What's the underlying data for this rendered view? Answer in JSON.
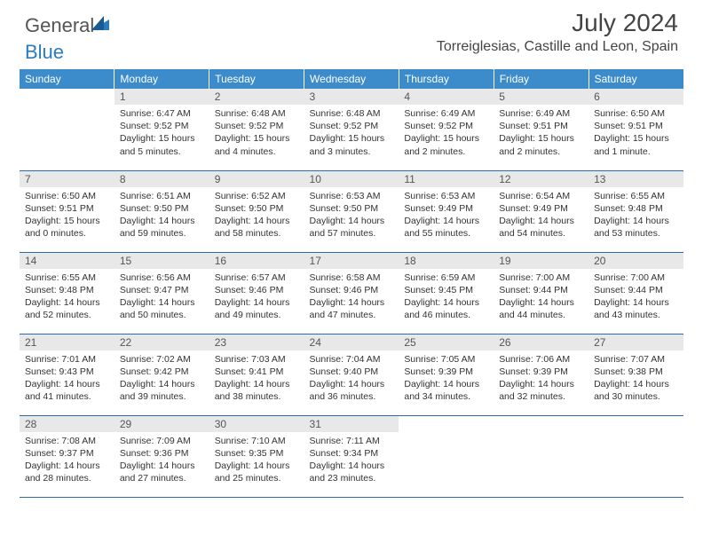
{
  "brand": {
    "part1": "General",
    "part2": "Blue"
  },
  "title": "July 2024",
  "location": "Torreiglesias, Castille and Leon, Spain",
  "colors": {
    "header_bg": "#3c8ccc",
    "header_text": "#ffffff",
    "daynum_bg": "#e8e8e8",
    "cell_border": "#2b6ba8",
    "body_text": "#333333",
    "brand_gray": "#555555",
    "brand_blue": "#2b7bbf"
  },
  "fonts": {
    "family": "Arial",
    "title_size_pt": 21,
    "location_size_pt": 12,
    "header_size_pt": 9,
    "body_size_pt": 8
  },
  "days_of_week": [
    "Sunday",
    "Monday",
    "Tuesday",
    "Wednesday",
    "Thursday",
    "Friday",
    "Saturday"
  ],
  "weeks": [
    [
      {
        "num": "",
        "l1": "",
        "l2": "",
        "l3": "",
        "l4": ""
      },
      {
        "num": "1",
        "l1": "Sunrise: 6:47 AM",
        "l2": "Sunset: 9:52 PM",
        "l3": "Daylight: 15 hours",
        "l4": "and 5 minutes."
      },
      {
        "num": "2",
        "l1": "Sunrise: 6:48 AM",
        "l2": "Sunset: 9:52 PM",
        "l3": "Daylight: 15 hours",
        "l4": "and 4 minutes."
      },
      {
        "num": "3",
        "l1": "Sunrise: 6:48 AM",
        "l2": "Sunset: 9:52 PM",
        "l3": "Daylight: 15 hours",
        "l4": "and 3 minutes."
      },
      {
        "num": "4",
        "l1": "Sunrise: 6:49 AM",
        "l2": "Sunset: 9:52 PM",
        "l3": "Daylight: 15 hours",
        "l4": "and 2 minutes."
      },
      {
        "num": "5",
        "l1": "Sunrise: 6:49 AM",
        "l2": "Sunset: 9:51 PM",
        "l3": "Daylight: 15 hours",
        "l4": "and 2 minutes."
      },
      {
        "num": "6",
        "l1": "Sunrise: 6:50 AM",
        "l2": "Sunset: 9:51 PM",
        "l3": "Daylight: 15 hours",
        "l4": "and 1 minute."
      }
    ],
    [
      {
        "num": "7",
        "l1": "Sunrise: 6:50 AM",
        "l2": "Sunset: 9:51 PM",
        "l3": "Daylight: 15 hours",
        "l4": "and 0 minutes."
      },
      {
        "num": "8",
        "l1": "Sunrise: 6:51 AM",
        "l2": "Sunset: 9:50 PM",
        "l3": "Daylight: 14 hours",
        "l4": "and 59 minutes."
      },
      {
        "num": "9",
        "l1": "Sunrise: 6:52 AM",
        "l2": "Sunset: 9:50 PM",
        "l3": "Daylight: 14 hours",
        "l4": "and 58 minutes."
      },
      {
        "num": "10",
        "l1": "Sunrise: 6:53 AM",
        "l2": "Sunset: 9:50 PM",
        "l3": "Daylight: 14 hours",
        "l4": "and 57 minutes."
      },
      {
        "num": "11",
        "l1": "Sunrise: 6:53 AM",
        "l2": "Sunset: 9:49 PM",
        "l3": "Daylight: 14 hours",
        "l4": "and 55 minutes."
      },
      {
        "num": "12",
        "l1": "Sunrise: 6:54 AM",
        "l2": "Sunset: 9:49 PM",
        "l3": "Daylight: 14 hours",
        "l4": "and 54 minutes."
      },
      {
        "num": "13",
        "l1": "Sunrise: 6:55 AM",
        "l2": "Sunset: 9:48 PM",
        "l3": "Daylight: 14 hours",
        "l4": "and 53 minutes."
      }
    ],
    [
      {
        "num": "14",
        "l1": "Sunrise: 6:55 AM",
        "l2": "Sunset: 9:48 PM",
        "l3": "Daylight: 14 hours",
        "l4": "and 52 minutes."
      },
      {
        "num": "15",
        "l1": "Sunrise: 6:56 AM",
        "l2": "Sunset: 9:47 PM",
        "l3": "Daylight: 14 hours",
        "l4": "and 50 minutes."
      },
      {
        "num": "16",
        "l1": "Sunrise: 6:57 AM",
        "l2": "Sunset: 9:46 PM",
        "l3": "Daylight: 14 hours",
        "l4": "and 49 minutes."
      },
      {
        "num": "17",
        "l1": "Sunrise: 6:58 AM",
        "l2": "Sunset: 9:46 PM",
        "l3": "Daylight: 14 hours",
        "l4": "and 47 minutes."
      },
      {
        "num": "18",
        "l1": "Sunrise: 6:59 AM",
        "l2": "Sunset: 9:45 PM",
        "l3": "Daylight: 14 hours",
        "l4": "and 46 minutes."
      },
      {
        "num": "19",
        "l1": "Sunrise: 7:00 AM",
        "l2": "Sunset: 9:44 PM",
        "l3": "Daylight: 14 hours",
        "l4": "and 44 minutes."
      },
      {
        "num": "20",
        "l1": "Sunrise: 7:00 AM",
        "l2": "Sunset: 9:44 PM",
        "l3": "Daylight: 14 hours",
        "l4": "and 43 minutes."
      }
    ],
    [
      {
        "num": "21",
        "l1": "Sunrise: 7:01 AM",
        "l2": "Sunset: 9:43 PM",
        "l3": "Daylight: 14 hours",
        "l4": "and 41 minutes."
      },
      {
        "num": "22",
        "l1": "Sunrise: 7:02 AM",
        "l2": "Sunset: 9:42 PM",
        "l3": "Daylight: 14 hours",
        "l4": "and 39 minutes."
      },
      {
        "num": "23",
        "l1": "Sunrise: 7:03 AM",
        "l2": "Sunset: 9:41 PM",
        "l3": "Daylight: 14 hours",
        "l4": "and 38 minutes."
      },
      {
        "num": "24",
        "l1": "Sunrise: 7:04 AM",
        "l2": "Sunset: 9:40 PM",
        "l3": "Daylight: 14 hours",
        "l4": "and 36 minutes."
      },
      {
        "num": "25",
        "l1": "Sunrise: 7:05 AM",
        "l2": "Sunset: 9:39 PM",
        "l3": "Daylight: 14 hours",
        "l4": "and 34 minutes."
      },
      {
        "num": "26",
        "l1": "Sunrise: 7:06 AM",
        "l2": "Sunset: 9:39 PM",
        "l3": "Daylight: 14 hours",
        "l4": "and 32 minutes."
      },
      {
        "num": "27",
        "l1": "Sunrise: 7:07 AM",
        "l2": "Sunset: 9:38 PM",
        "l3": "Daylight: 14 hours",
        "l4": "and 30 minutes."
      }
    ],
    [
      {
        "num": "28",
        "l1": "Sunrise: 7:08 AM",
        "l2": "Sunset: 9:37 PM",
        "l3": "Daylight: 14 hours",
        "l4": "and 28 minutes."
      },
      {
        "num": "29",
        "l1": "Sunrise: 7:09 AM",
        "l2": "Sunset: 9:36 PM",
        "l3": "Daylight: 14 hours",
        "l4": "and 27 minutes."
      },
      {
        "num": "30",
        "l1": "Sunrise: 7:10 AM",
        "l2": "Sunset: 9:35 PM",
        "l3": "Daylight: 14 hours",
        "l4": "and 25 minutes."
      },
      {
        "num": "31",
        "l1": "Sunrise: 7:11 AM",
        "l2": "Sunset: 9:34 PM",
        "l3": "Daylight: 14 hours",
        "l4": "and 23 minutes."
      },
      {
        "num": "",
        "l1": "",
        "l2": "",
        "l3": "",
        "l4": ""
      },
      {
        "num": "",
        "l1": "",
        "l2": "",
        "l3": "",
        "l4": ""
      },
      {
        "num": "",
        "l1": "",
        "l2": "",
        "l3": "",
        "l4": ""
      }
    ]
  ]
}
